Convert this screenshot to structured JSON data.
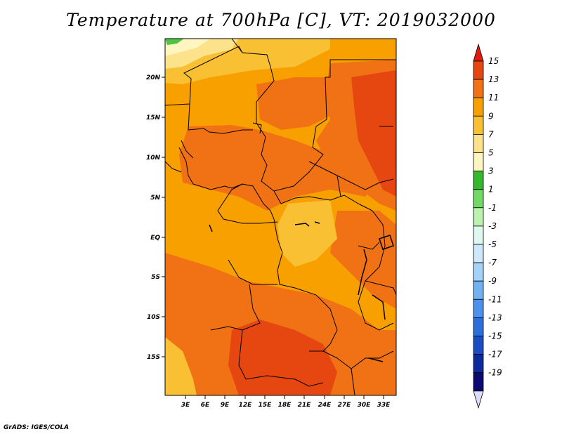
{
  "title": "Temperature at 700hPa [C], VT: 2019032000",
  "credit": "GrADS: IGES/COLA",
  "map": {
    "lon_labels": [
      "3E",
      "6E",
      "9E",
      "12E",
      "15E",
      "18E",
      "21E",
      "24E",
      "27E",
      "30E",
      "33E"
    ],
    "lat_labels": [
      "20N",
      "15N",
      "10N",
      "5N",
      "EQ",
      "5S",
      "10S",
      "15S"
    ],
    "colors": {
      "c9_11": "#f8a000",
      "c11_13": "#f07214",
      "c13_15": "#e64610",
      "c7_9": "#fac034",
      "c5_7": "#fde28c",
      "c3_5": "#fef5c0",
      "green": "#4cc444",
      "border": "#000000"
    }
  },
  "colorbar": {
    "labels": [
      "15",
      "13",
      "11",
      "9",
      "7",
      "5",
      "3",
      "1",
      "-1",
      "-3",
      "-5",
      "-7",
      "-9",
      "-11",
      "-13",
      "-15",
      "-17",
      "-19"
    ],
    "colors": [
      "#e11c0a",
      "#e64610",
      "#f07214",
      "#f8a000",
      "#fac034",
      "#fde28c",
      "#fef5c0",
      "#36b82e",
      "#72d866",
      "#bcf2b0",
      "#dff8ef",
      "#cce8fa",
      "#a4d2f8",
      "#72b2f4",
      "#4c92ec",
      "#2c6ede",
      "#1a4cc4",
      "#0c2a9c",
      "#0a0a70"
    ],
    "under_color": "#dcdcf8"
  }
}
